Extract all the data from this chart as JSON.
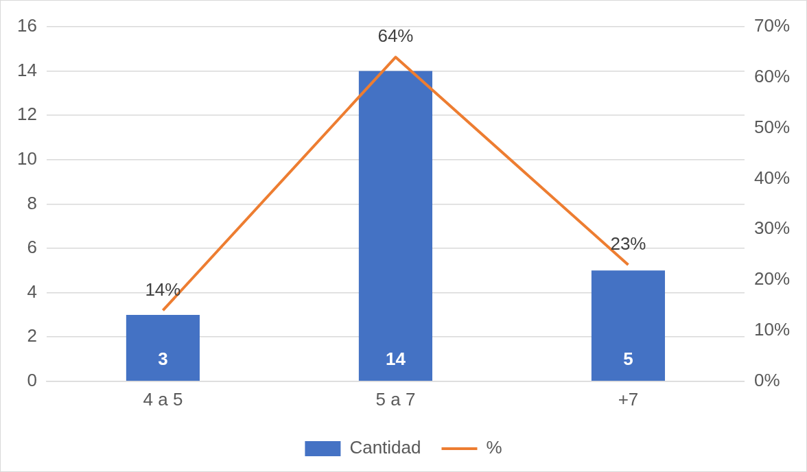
{
  "chart_data": {
    "type": "bar",
    "categories": [
      "4 a 5",
      "5 a 7",
      "+7"
    ],
    "series": [
      {
        "name": "Cantidad",
        "color": "#4472c4",
        "values": [
          3,
          14,
          5
        ],
        "value_labels": [
          "3",
          "14",
          "5"
        ]
      },
      {
        "name": "%",
        "type": "line",
        "axis": "y2",
        "color": "#ed7d31",
        "values": [
          14,
          64,
          23
        ],
        "value_labels": [
          "14%",
          "64%",
          "23%"
        ],
        "marker": "none"
      }
    ],
    "ylim": [
      0,
      16
    ],
    "yticks": [
      0,
      2,
      4,
      6,
      8,
      10,
      12,
      14,
      16
    ],
    "y2lim": [
      0,
      70
    ],
    "y2ticks": [
      {
        "value": 0,
        "label": "0%"
      },
      {
        "value": 10,
        "label": "10%"
      },
      {
        "value": 20,
        "label": "20%"
      },
      {
        "value": 30,
        "label": "30%"
      },
      {
        "value": 40,
        "label": "40%"
      },
      {
        "value": 50,
        "label": "50%"
      },
      {
        "value": 60,
        "label": "60%"
      },
      {
        "value": 70,
        "label": "70%"
      }
    ],
    "grid": "y",
    "legend": "bottom"
  }
}
